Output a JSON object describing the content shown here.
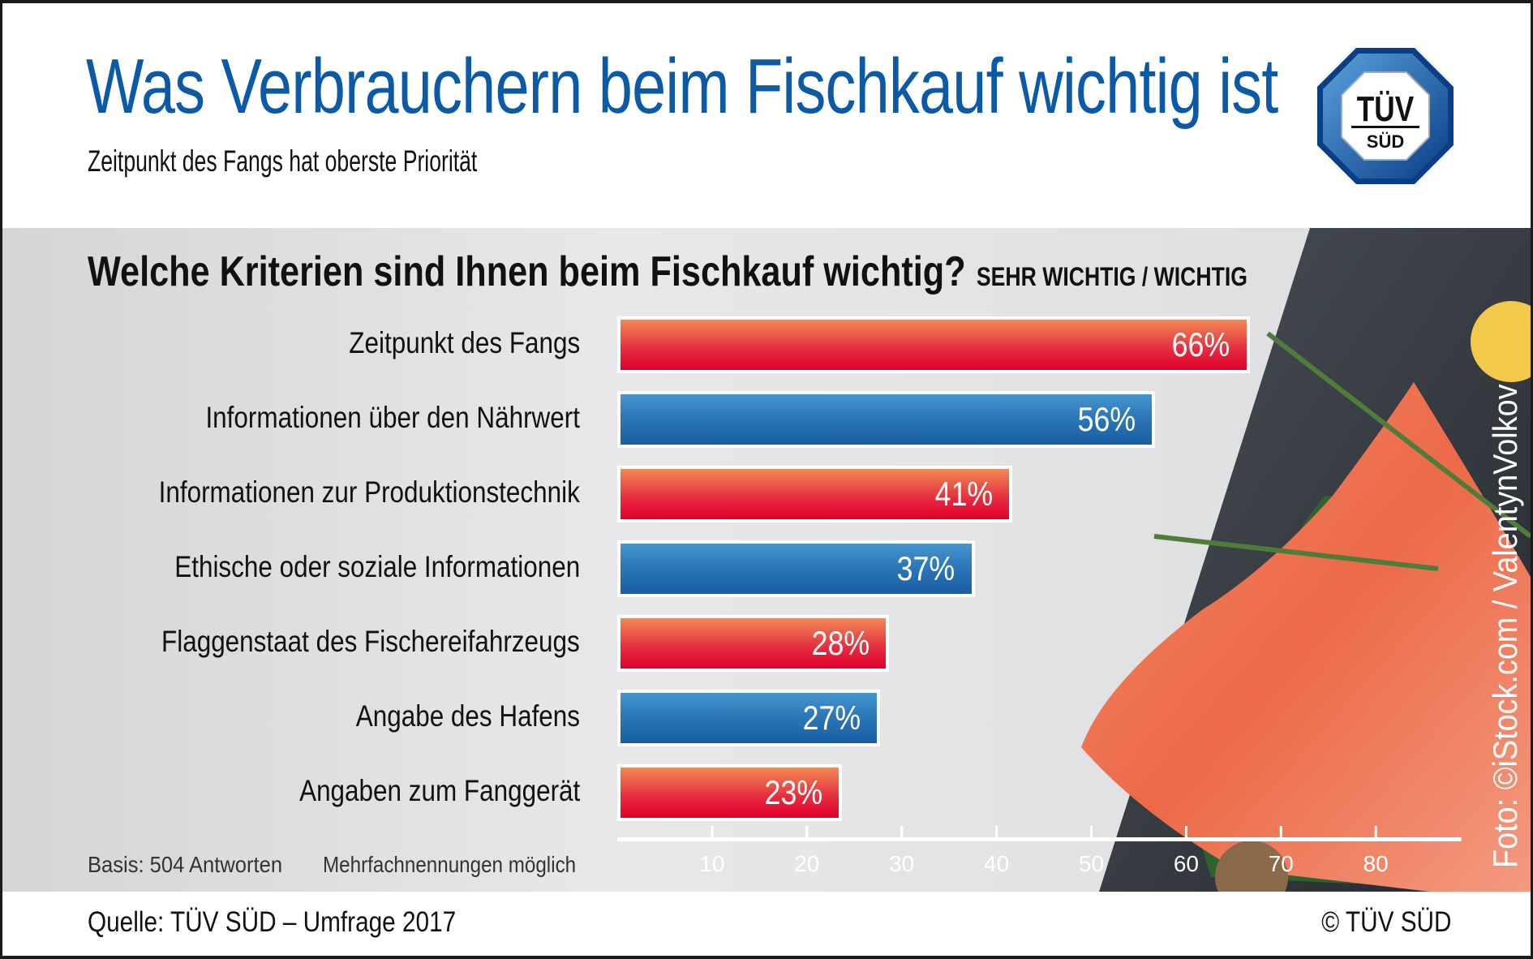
{
  "header": {
    "title": "Was Verbrauchern beim Fischkauf wichtig ist",
    "subtitle": "Zeitpunkt des Fangs hat oberste Priorität",
    "logo_text": [
      "TÜV",
      "SÜD"
    ]
  },
  "chart_data": {
    "type": "bar",
    "orientation": "horizontal",
    "title": "Welche Kriterien sind Ihnen beim Fischkauf wichtig?",
    "subtitle": "SEHR WICHTIG / WICHTIG",
    "categories": [
      "Zeitpunkt des Fangs",
      "Informationen über den Nährwert",
      "Informationen zur Produktionstechnik",
      "Ethische oder soziale Informationen",
      "Flaggenstaat des Fischereifahrzeugs",
      "Angabe des Hafens",
      "Angaben zum Fanggerät"
    ],
    "values": [
      66,
      56,
      41,
      37,
      28,
      27,
      23
    ],
    "value_labels": [
      "66%",
      "56%",
      "41%",
      "37%",
      "28%",
      "27%",
      "23%"
    ],
    "bar_colors": [
      "#e52a3e",
      "#2d78b8",
      "#e52a3e",
      "#2d78b8",
      "#e52a3e",
      "#2d78b8",
      "#e52a3e"
    ],
    "xlim": [
      0,
      85
    ],
    "xticks": [
      10,
      20,
      30,
      40,
      50,
      60,
      70,
      80
    ],
    "grid": false
  },
  "notes": {
    "basis": "Basis: 504 Antworten",
    "multiple": "Mehrfachnennungen möglich"
  },
  "footer": {
    "source": "Quelle: TÜV SÜD – Umfrage 2017",
    "copyright": "© TÜV SÜD",
    "photo_credit": "Foto: ©iStock.com / ValentynVolkov"
  },
  "colors": {
    "title": "#0a5aa8",
    "red": "#e52a3e",
    "blue": "#2d78b8"
  }
}
